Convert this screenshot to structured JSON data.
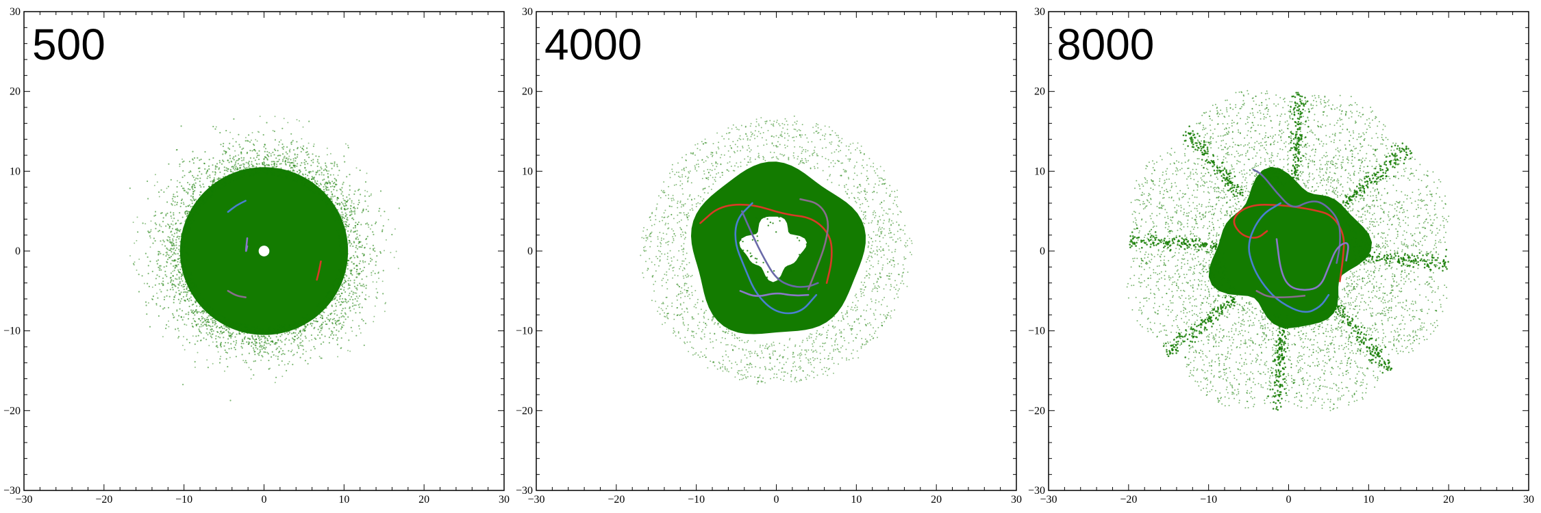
{
  "chart_data": [
    {
      "type": "scatter",
      "title": "500",
      "xlim": [
        -30,
        30
      ],
      "ylim": [
        -30,
        30
      ],
      "xticks": [
        -30,
        -20,
        -10,
        0,
        10,
        20,
        30
      ],
      "yticks": [
        -30,
        -20,
        -10,
        0,
        10,
        20,
        30
      ],
      "grid": false,
      "point_color": "#137b00",
      "distribution": {
        "shape": "disk",
        "core_radius": 10.5,
        "halo_radius": 16,
        "inner_hole_radius": 0.5
      },
      "trajectories": [
        {
          "color": "#d93a26",
          "points": [
            [
              7.1,
              -1.3
            ],
            [
              6.9,
              -2.4
            ],
            [
              6.6,
              -3.6
            ]
          ]
        },
        {
          "color": "#4a7fd0",
          "points": [
            [
              -4.5,
              4.9
            ],
            [
              -3.5,
              5.7
            ],
            [
              -2.3,
              6.3
            ]
          ]
        },
        {
          "color": "#8a78c8",
          "points": [
            [
              -2.1,
              0.6
            ],
            [
              -2.3,
              -0.3
            ],
            [
              -2.1,
              1.6
            ]
          ]
        },
        {
          "color": "#8a6d8e",
          "points": [
            [
              -4.5,
              -5.0
            ],
            [
              -3.5,
              -5.6
            ],
            [
              -2.3,
              -5.8
            ]
          ]
        }
      ]
    },
    {
      "type": "scatter",
      "title": "4000",
      "xlim": [
        -30,
        30
      ],
      "ylim": [
        -30,
        30
      ],
      "xticks": [
        -30,
        -20,
        -10,
        0,
        10,
        20,
        30
      ],
      "yticks": [
        -30,
        -20,
        -10,
        0,
        10,
        20,
        30
      ],
      "grid": false,
      "point_color": "#137b00",
      "distribution": {
        "shape": "ring",
        "inner_radius": 3.5,
        "outer_radius": 11,
        "halo_radius": 17
      },
      "trajectories": [
        {
          "color": "#d93a26",
          "points": [
            [
              -9.5,
              3.5
            ],
            [
              -7,
              5.7
            ],
            [
              -3,
              5.9
            ],
            [
              1,
              4.6
            ],
            [
              4.5,
              4.2
            ],
            [
              6.8,
              2
            ],
            [
              7,
              -1
            ],
            [
              6.3,
              -4
            ]
          ]
        },
        {
          "color": "#4a7fd0",
          "points": [
            [
              -3,
              6
            ],
            [
              -5,
              4
            ],
            [
              -5.2,
              1
            ],
            [
              -4,
              -2
            ],
            [
              -2.5,
              -5.5
            ],
            [
              0,
              -7.8
            ],
            [
              3,
              -7.8
            ],
            [
              5,
              -5.5
            ]
          ]
        },
        {
          "color": "#6a6aa8",
          "points": [
            [
              -4.3,
              5
            ],
            [
              -3,
              2
            ],
            [
              -1.5,
              -1
            ],
            [
              0,
              -3.5
            ],
            [
              2,
              -4.5
            ],
            [
              4,
              -4.5
            ],
            [
              5.2,
              -4
            ]
          ]
        },
        {
          "color": "#8a6d8e",
          "points": [
            [
              3,
              6.5
            ],
            [
              5.3,
              6
            ],
            [
              6.6,
              4
            ],
            [
              6.2,
              1
            ],
            [
              5.1,
              -2
            ],
            [
              4,
              -4.8
            ]
          ]
        },
        {
          "color": "#8a78c8",
          "points": [
            [
              -4.5,
              -5
            ],
            [
              -2.5,
              -5.8
            ],
            [
              0,
              -5.2
            ],
            [
              2,
              -5.6
            ],
            [
              4,
              -5.5
            ]
          ]
        }
      ]
    },
    {
      "type": "scatter",
      "title": "8000",
      "xlim": [
        -30,
        30
      ],
      "ylim": [
        -30,
        30
      ],
      "xticks": [
        -30,
        -20,
        -10,
        0,
        10,
        20,
        30
      ],
      "yticks": [
        -30,
        -20,
        -10,
        0,
        10,
        20,
        30
      ],
      "grid": false,
      "point_color": "#137b00",
      "distribution": {
        "shape": "petals",
        "core_radius": 9,
        "petal_count": 8,
        "petal_reach": 23
      },
      "trajectories": [
        {
          "color": "#d93a26",
          "points": [
            [
              -2.7,
              2.5
            ],
            [
              -4,
              1.5
            ],
            [
              -6,
              2
            ],
            [
              -7.2,
              4
            ],
            [
              -5,
              5.8
            ],
            [
              -1,
              5.8
            ],
            [
              3,
              5.2
            ],
            [
              5.5,
              4.5
            ],
            [
              7,
              2
            ],
            [
              6.8,
              -1
            ],
            [
              6.4,
              -3.8
            ]
          ]
        },
        {
          "color": "#4a7fd0",
          "points": [
            [
              -1,
              6
            ],
            [
              -3.5,
              4.5
            ],
            [
              -5.2,
              1
            ],
            [
              -4.5,
              -2
            ],
            [
              -3,
              -4.5
            ],
            [
              -1,
              -6.5
            ],
            [
              2,
              -7.9
            ],
            [
              4,
              -7
            ],
            [
              5,
              -5.5
            ]
          ]
        },
        {
          "color": "#6a6aa8",
          "points": [
            [
              -4.4,
              10.2
            ],
            [
              -3.3,
              9.6
            ],
            [
              -1.5,
              7.3
            ],
            [
              0.5,
              5.2
            ],
            [
              2.6,
              6.3
            ],
            [
              4.3,
              6.1
            ],
            [
              6.3,
              4
            ],
            [
              6.5,
              1
            ],
            [
              6,
              -1.5
            ]
          ]
        },
        {
          "color": "#8a78c8",
          "points": [
            [
              -1.5,
              1.5
            ],
            [
              -1,
              -2.5
            ],
            [
              0,
              -4.5
            ],
            [
              2,
              -5
            ],
            [
              4,
              -4.5
            ],
            [
              5,
              -2
            ],
            [
              6,
              0.5
            ],
            [
              7.6,
              1.3
            ],
            [
              7.2,
              -1.2
            ]
          ]
        },
        {
          "color": "#8a6d8e",
          "points": [
            [
              -4,
              -5
            ],
            [
              -2.5,
              -5.8
            ],
            [
              0,
              -5.8
            ],
            [
              2,
              -5.6
            ]
          ]
        }
      ]
    }
  ]
}
